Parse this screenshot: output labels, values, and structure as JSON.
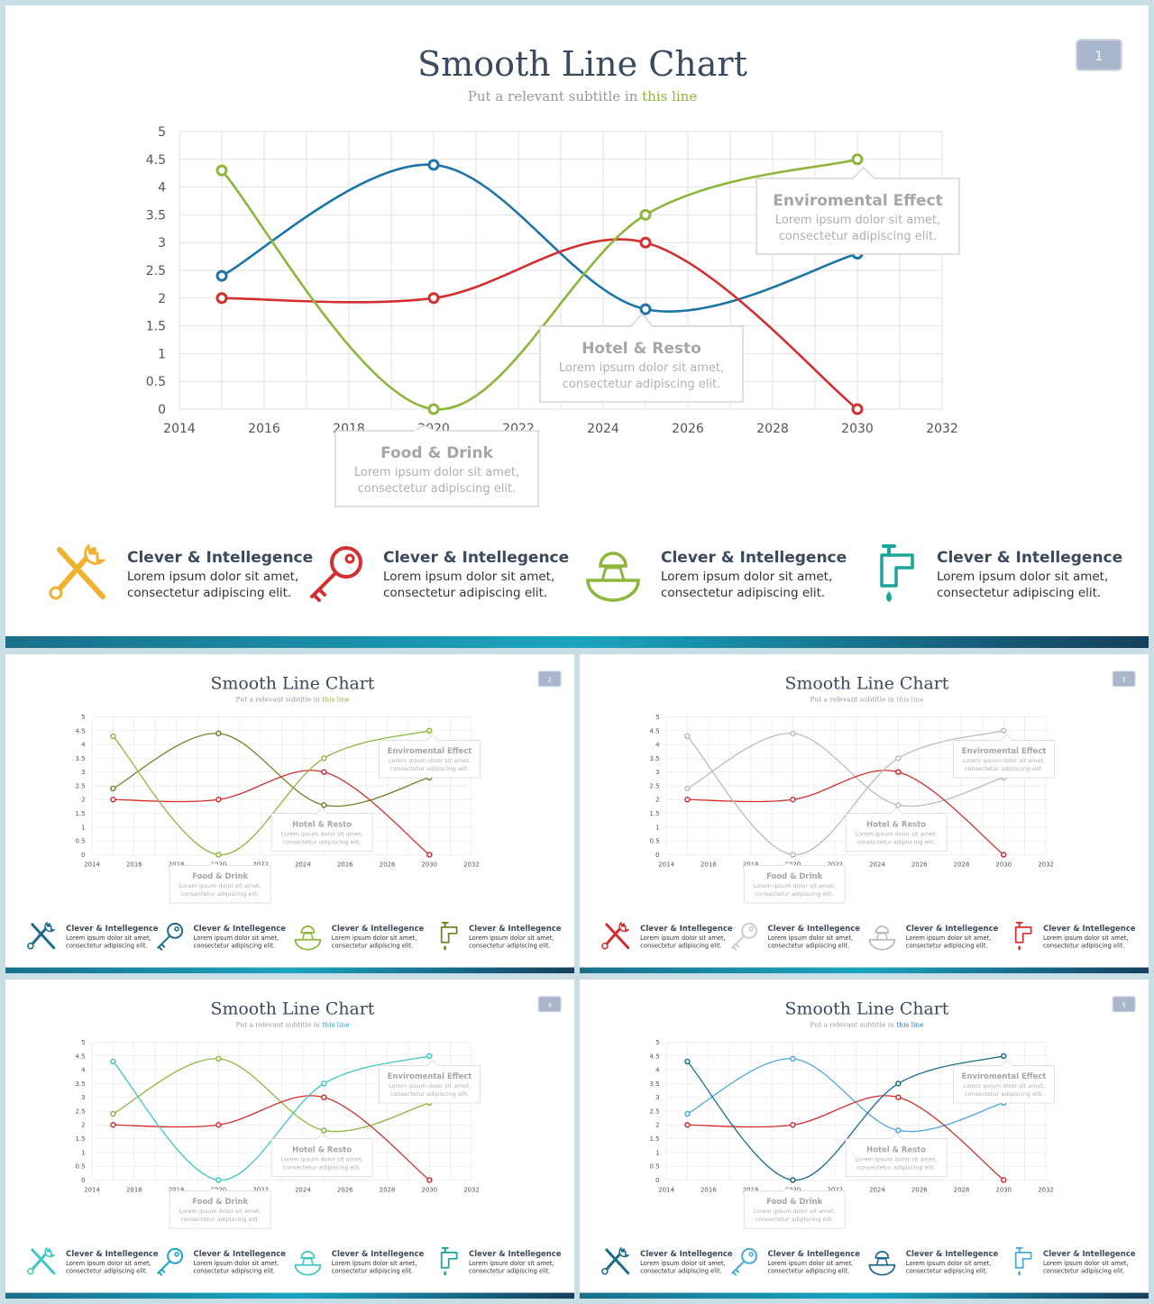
{
  "slides": [
    {
      "page_number": "1",
      "title": "Smooth Line Chart",
      "subtitle_prefix": "Put a relevant subtitle in ",
      "subtitle_highlight": "this line",
      "highlight_color": "#8db63b",
      "series_colors": [
        "#1b75a8",
        "#d52e2e",
        "#8db63b"
      ],
      "icon_colors": [
        "#f0b030",
        "#d52e2e",
        "#8db63b",
        "#1aa59c"
      ]
    },
    {
      "page_number": "2",
      "title": "Smooth Line Chart",
      "subtitle_prefix": "Put a relevant subtitle in ",
      "subtitle_highlight": "this line",
      "highlight_color": "#8db63b",
      "series_colors": [
        "#6b8426",
        "#d52e2e",
        "#8db63b"
      ],
      "icon_colors": [
        "#1b6b8a",
        "#1b6b8a",
        "#8db63b",
        "#6b8426"
      ]
    },
    {
      "page_number": "3",
      "title": "Smooth Line Chart",
      "subtitle_prefix": "Put a relevant subtitle in ",
      "subtitle_highlight": "this line",
      "highlight_color": "#aaaaaa",
      "series_colors": [
        "#bbbbbb",
        "#d52e2e",
        "#bbbbbb"
      ],
      "icon_colors": [
        "#d52e2e",
        "#cccccc",
        "#bbbbbb",
        "#d52e2e"
      ]
    },
    {
      "page_number": "4",
      "title": "Smooth Line Chart",
      "subtitle_prefix": "Put a relevant subtitle in ",
      "subtitle_highlight": "this line",
      "highlight_color": "#1aa5c8",
      "series_colors": [
        "#8db63b",
        "#d52e2e",
        "#3cc8c0"
      ],
      "icon_colors": [
        "#3cc8c0",
        "#1aa5c8",
        "#3cc8c0",
        "#1aa59c"
      ]
    },
    {
      "page_number": "5",
      "title": "Smooth Line Chart",
      "subtitle_prefix": "Put a relevant subtitle in ",
      "subtitle_highlight": "this line",
      "highlight_color": "#1b75a8",
      "series_colors": [
        "#4aa8d8",
        "#d52e2e",
        "#1b6b8a"
      ],
      "icon_colors": [
        "#1b6b8a",
        "#4aa8d8",
        "#1b6b8a",
        "#4aa8d8"
      ]
    }
  ],
  "chart_data": {
    "type": "line",
    "smooth": true,
    "x_ticks": [
      2014,
      2016,
      2018,
      2020,
      2022,
      2024,
      2026,
      2028,
      2030,
      2032
    ],
    "y_ticks": [
      0,
      0.5,
      1,
      1.5,
      2,
      2.5,
      3,
      3.5,
      4,
      4.5,
      5
    ],
    "xlim": [
      2014,
      2032
    ],
    "ylim": [
      0,
      5
    ],
    "grid": true,
    "x": [
      2015,
      2020,
      2025,
      2030
    ],
    "series": [
      {
        "values": [
          2.4,
          4.4,
          1.8,
          2.8
        ]
      },
      {
        "values": [
          2.0,
          2.0,
          3.0,
          0.0
        ]
      },
      {
        "values": [
          4.3,
          0.0,
          3.5,
          4.5
        ]
      }
    ]
  },
  "callouts": [
    {
      "title": "Food & Drink",
      "body1": "Lorem ipsum dolor sit amet,",
      "body2": "consectetur adipiscing elit."
    },
    {
      "title": "Hotel & Resto",
      "body1": "Lorem ipsum dolor sit amet,",
      "body2": "consectetur adipiscing elit."
    },
    {
      "title": "Enviromental Effect",
      "body1": "Lorem ipsum dolor sit amet,",
      "body2": "consectetur adipiscing elit."
    }
  ],
  "features": [
    {
      "icon": "tools-icon",
      "title": "Clever & Intellegence",
      "body1": "Lorem ipsum dolor sit amet,",
      "body2": "consectetur adipiscing elit."
    },
    {
      "icon": "key-icon",
      "title": "Clever & Intellegence",
      "body1": "Lorem ipsum dolor sit amet,",
      "body2": "consectetur adipiscing elit."
    },
    {
      "icon": "juicer-icon",
      "title": "Clever & Intellegence",
      "body1": "Lorem ipsum dolor sit amet,",
      "body2": "consectetur adipiscing elit."
    },
    {
      "icon": "faucet-icon",
      "title": "Clever & Intellegence",
      "body1": "Lorem ipsum dolor sit amet,",
      "body2": "consectetur adipiscing elit."
    }
  ]
}
